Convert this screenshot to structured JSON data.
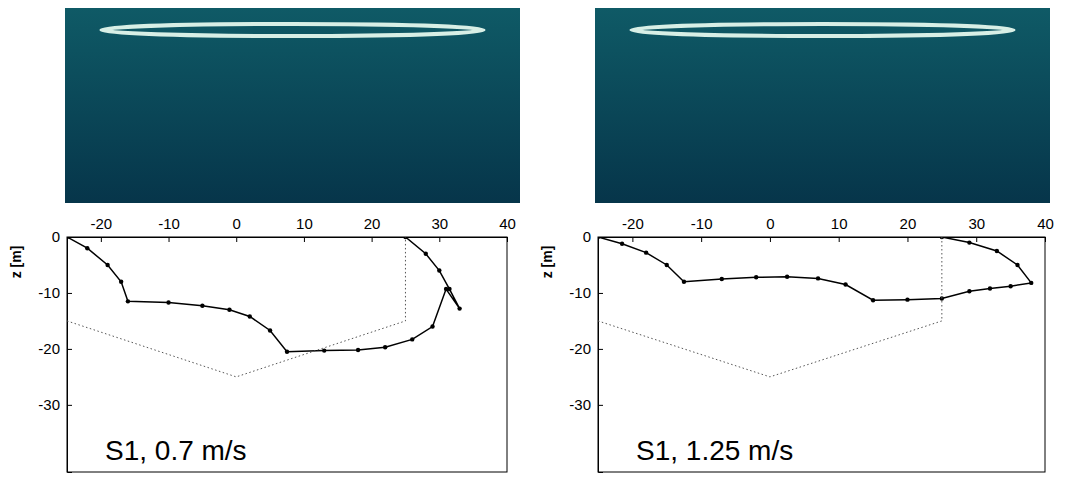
{
  "chart_data": [
    {
      "type": "line",
      "label": "S1, 0.7 m/s",
      "ylabel": "z [m]",
      "xlim": [
        -25,
        40
      ],
      "ylim": [
        -42,
        0
      ],
      "xticks": [
        -20,
        -10,
        0,
        10,
        20,
        30,
        40
      ],
      "yticks": [
        0,
        -10,
        -20,
        -30
      ],
      "series": [
        {
          "color": "#000000",
          "marker": "circle",
          "line_style": "solid",
          "x": [
            -25,
            -22,
            -19,
            -17,
            -16,
            -10,
            -5,
            -1,
            2,
            5,
            7.5,
            13,
            18,
            22,
            26,
            29,
            31,
            33,
            31.5,
            30,
            28,
            25
          ],
          "values": [
            0,
            -2,
            -5,
            -8,
            -11.5,
            -11.7,
            -12.3,
            -13,
            -14.2,
            -16.7,
            -20.5,
            -20.3,
            -20.2,
            -19.7,
            -18.3,
            -16,
            -9.3,
            -12.8,
            -9.3,
            -6,
            -3,
            0
          ]
        },
        {
          "color": "#555555",
          "marker": "none",
          "line_style": "dotted",
          "x": [
            -25,
            0,
            25,
            25
          ],
          "values": [
            -15,
            -25,
            -15,
            0
          ]
        }
      ]
    },
    {
      "type": "line",
      "label": "S1, 1.25 m/s",
      "ylabel": "z [m]",
      "xlim": [
        -25,
        40
      ],
      "ylim": [
        -42,
        0
      ],
      "xticks": [
        -20,
        -10,
        0,
        10,
        20,
        30,
        40
      ],
      "yticks": [
        0,
        -10,
        -20,
        -30
      ],
      "series": [
        {
          "color": "#000000",
          "marker": "circle",
          "line_style": "solid",
          "x": [
            -25,
            -21.5,
            -18,
            -15,
            -12.5,
            -7,
            -2,
            2.5,
            7,
            11,
            15,
            20,
            25,
            29,
            32,
            35,
            38,
            36,
            33,
            29,
            25
          ],
          "values": [
            0,
            -1.2,
            -2.8,
            -5,
            -8,
            -7.5,
            -7.2,
            -7.1,
            -7.4,
            -8.5,
            -11.3,
            -11.2,
            -11,
            -9.7,
            -9.2,
            -8.8,
            -8.2,
            -5,
            -2.5,
            -1,
            0
          ]
        },
        {
          "color": "#555555",
          "marker": "none",
          "line_style": "dotted",
          "x": [
            -25,
            0,
            25,
            25
          ],
          "values": [
            -15,
            -25,
            -15,
            0
          ]
        }
      ]
    }
  ]
}
